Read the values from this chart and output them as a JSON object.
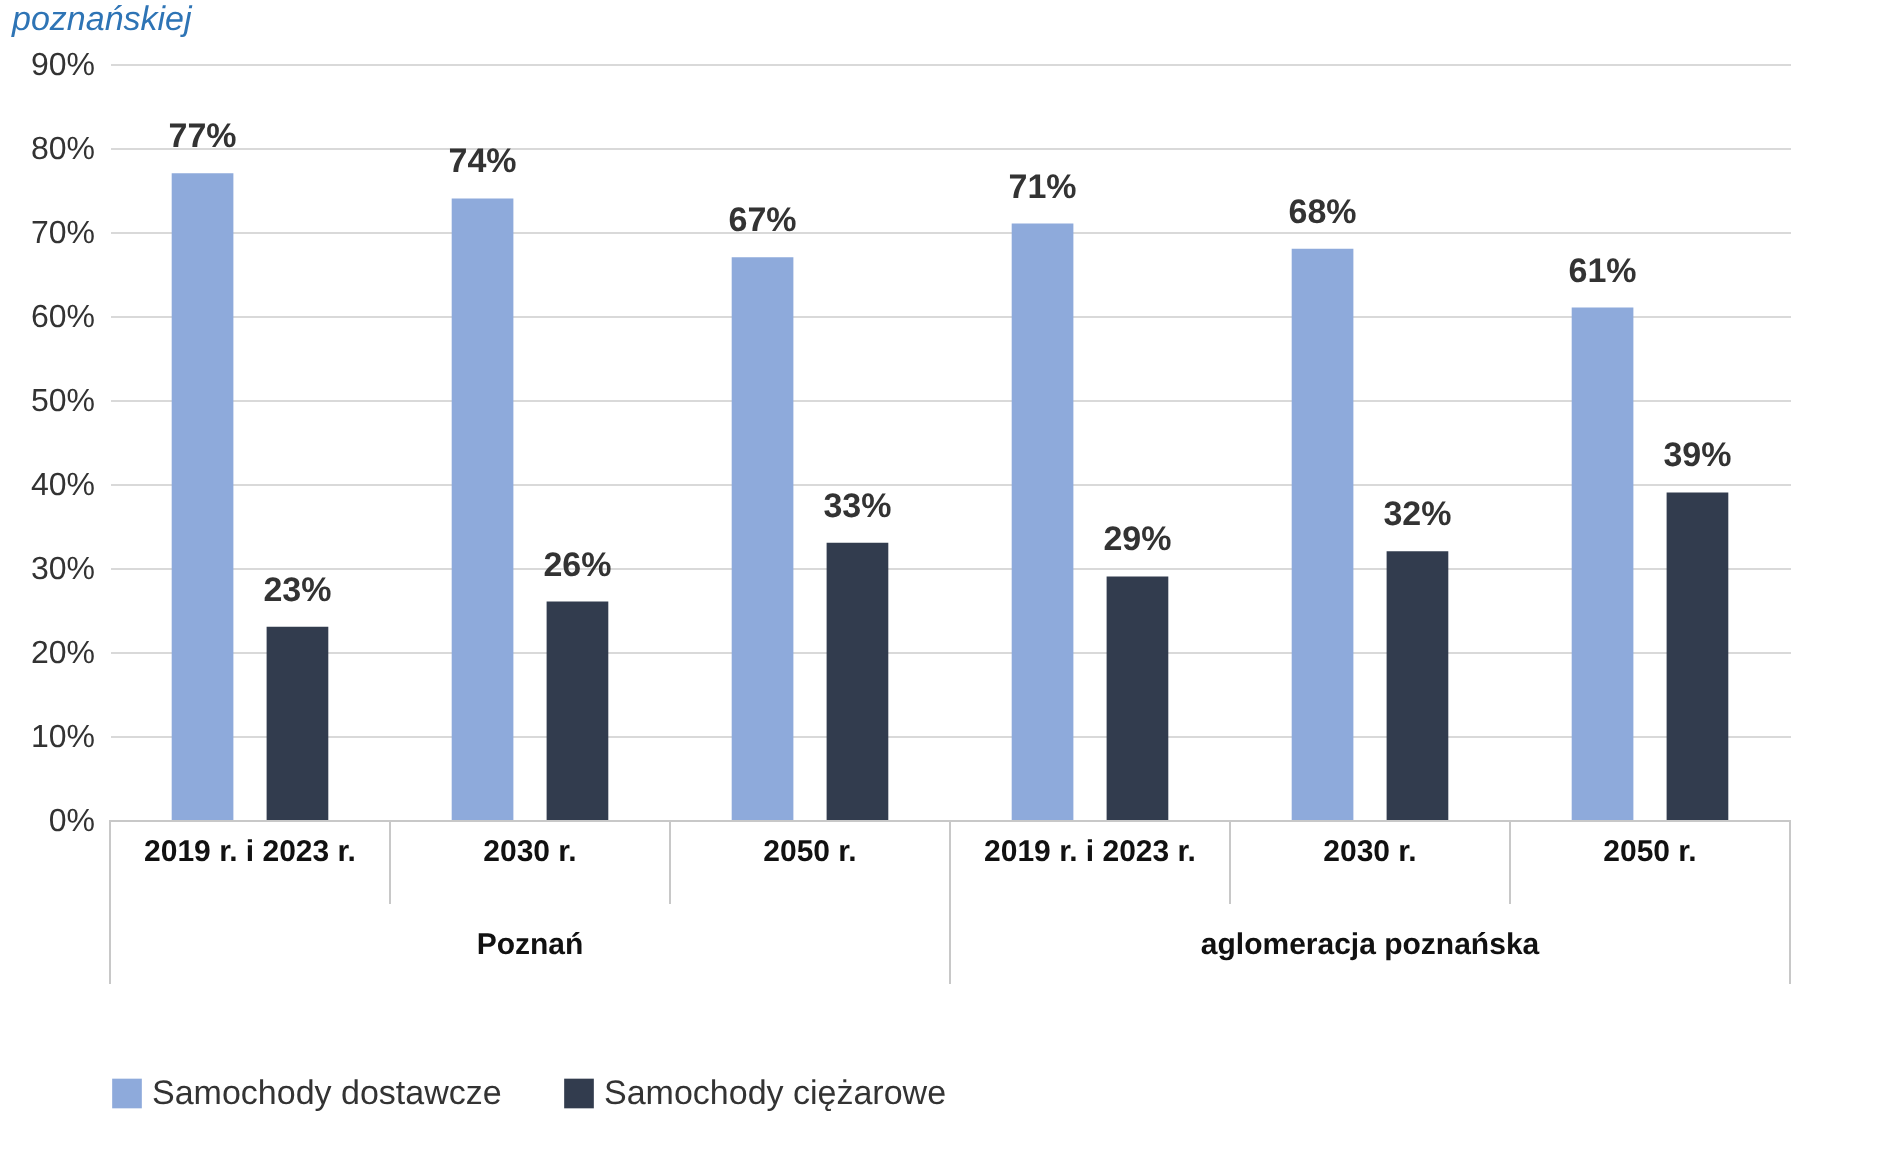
{
  "chart_data": {
    "type": "bar",
    "title": "poznańskiej",
    "categories": [
      "2019 r. i 2023 r.",
      "2030 r.",
      "2050 r.",
      "2019 r. i 2023 r.",
      "2030 r.",
      "2050 r."
    ],
    "series": [
      {
        "name": "Samochody dostawcze",
        "color": "#8eaadb",
        "values": [
          77,
          74,
          67,
          71,
          68,
          61
        ],
        "value_labels": [
          "77%",
          "74%",
          "67%",
          "71%",
          "68%",
          "61%"
        ]
      },
      {
        "name": "Samochody ciężarowe",
        "color": "#323c4e",
        "values": [
          23,
          26,
          33,
          29,
          32,
          39
        ],
        "value_labels": [
          "23%",
          "26%",
          "33%",
          "29%",
          "32%",
          "39%"
        ]
      }
    ],
    "annotations": [
      "Poznań",
      "aglomeracja poznańska"
    ],
    "ylim": [
      0,
      90
    ],
    "yticks": [
      {
        "value": 0,
        "label": "0%"
      },
      {
        "value": 10,
        "label": "10%"
      },
      {
        "value": 20,
        "label": "20%"
      },
      {
        "value": 30,
        "label": "30%"
      },
      {
        "value": 40,
        "label": "40%"
      },
      {
        "value": 50,
        "label": "50%"
      },
      {
        "value": 60,
        "label": "60%"
      },
      {
        "value": 70,
        "label": "70%"
      },
      {
        "value": 80,
        "label": "80%"
      },
      {
        "value": 90,
        "label": "90%"
      }
    ],
    "grid": "y",
    "legend": "bottom"
  }
}
